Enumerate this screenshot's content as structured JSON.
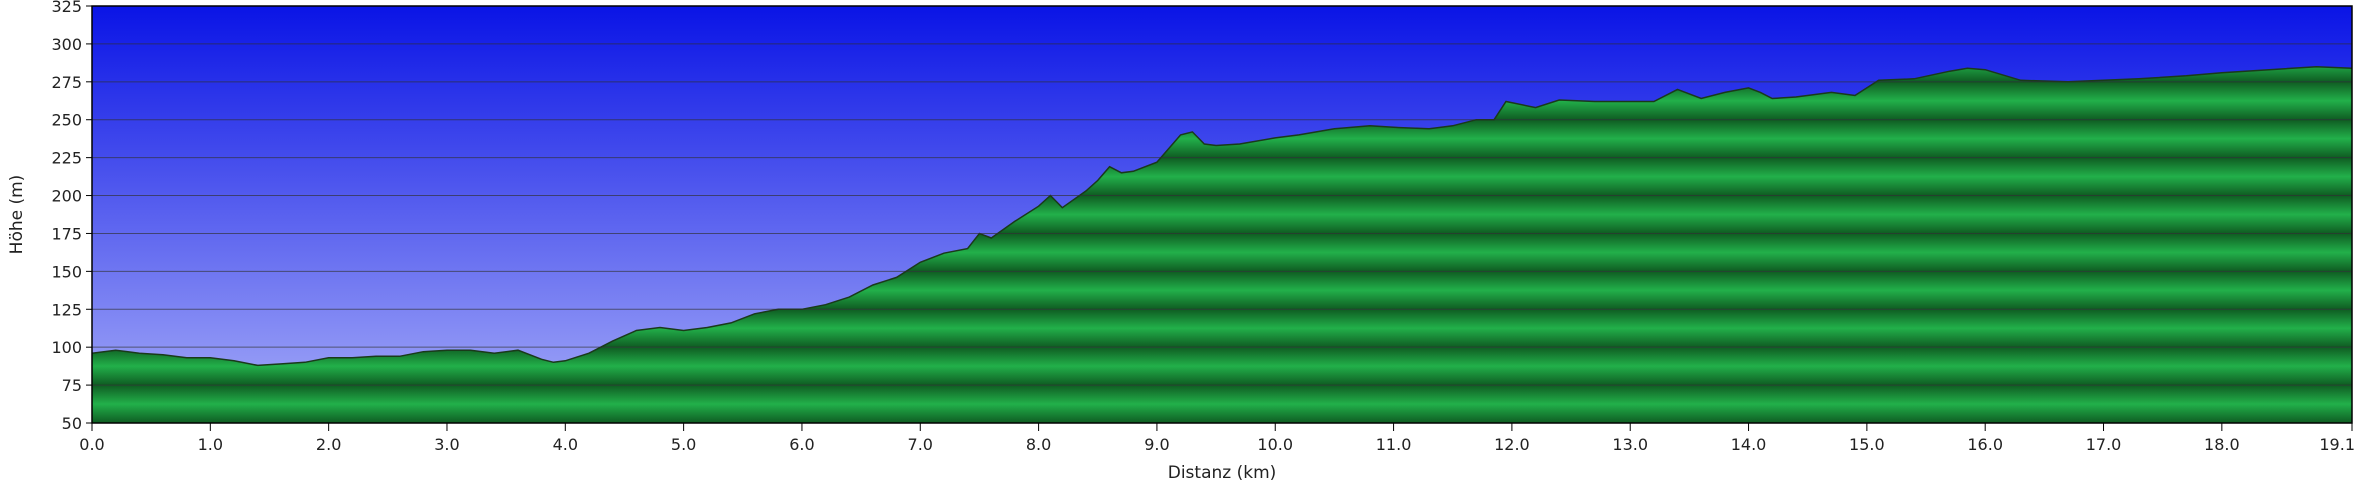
{
  "chart_data": {
    "type": "area",
    "xlabel": "Distanz   (km)",
    "ylabel": "Höhe (m)",
    "xlim": [
      0,
      19.1
    ],
    "ylim": [
      50,
      325
    ],
    "x_ticks": [
      "0.0",
      "1.0",
      "2.0",
      "3.0",
      "4.0",
      "5.0",
      "6.0",
      "7.0",
      "8.0",
      "9.0",
      "10.0",
      "11.0",
      "12.0",
      "13.0",
      "14.0",
      "15.0",
      "16.0",
      "17.0",
      "18.0",
      "19.1"
    ],
    "y_ticks": [
      "325",
      "300",
      "275",
      "250",
      "225",
      "200",
      "175",
      "150",
      "125",
      "100",
      "75",
      "50"
    ],
    "grid": true,
    "colors": {
      "sky_top": "#0a14e6",
      "sky_bottom": "#a8aef8",
      "fill_light": "#22b04a",
      "fill_dark": "#0f5c22",
      "outline": "#1a3a1a",
      "grid": "#303030"
    },
    "x": [
      0,
      0.2,
      0.4,
      0.6,
      0.8,
      1.0,
      1.2,
      1.4,
      1.6,
      1.8,
      2.0,
      2.2,
      2.4,
      2.6,
      2.8,
      3.0,
      3.2,
      3.4,
      3.6,
      3.8,
      3.9,
      4.0,
      4.2,
      4.4,
      4.6,
      4.8,
      5.0,
      5.2,
      5.4,
      5.6,
      5.8,
      6.0,
      6.2,
      6.4,
      6.6,
      6.8,
      7.0,
      7.2,
      7.4,
      7.5,
      7.6,
      7.8,
      8.0,
      8.1,
      8.2,
      8.4,
      8.5,
      8.6,
      8.7,
      8.8,
      9.0,
      9.2,
      9.3,
      9.4,
      9.5,
      9.7,
      10.0,
      10.2,
      10.5,
      10.8,
      11.0,
      11.3,
      11.5,
      11.7,
      11.85,
      11.95,
      12.2,
      12.4,
      12.7,
      13.0,
      13.2,
      13.4,
      13.6,
      13.8,
      14.0,
      14.1,
      14.2,
      14.4,
      14.7,
      14.9,
      15.1,
      15.4,
      15.7,
      15.85,
      16.0,
      16.3,
      16.7,
      17.0,
      17.3,
      17.7,
      18.0,
      18.4,
      18.8,
      19.1
    ],
    "y": [
      96,
      98,
      96,
      95,
      93,
      93,
      91,
      88,
      89,
      90,
      93,
      93,
      94,
      94,
      97,
      98,
      98,
      96,
      98,
      92,
      90,
      91,
      96,
      104,
      111,
      113,
      111,
      113,
      116,
      122,
      125,
      125,
      128,
      133,
      141,
      146,
      156,
      162,
      165,
      175,
      172,
      183,
      193,
      200,
      192,
      203,
      210,
      219,
      215,
      216,
      222,
      240,
      242,
      234,
      233,
      234,
      238,
      240,
      244,
      246,
      245,
      244,
      246,
      250,
      250,
      262,
      258,
      263,
      262,
      262,
      262,
      270,
      264,
      268,
      271,
      268,
      264,
      265,
      268,
      266,
      276,
      277,
      282,
      284,
      283,
      276,
      275,
      276,
      277,
      279,
      281,
      283,
      285,
      284
    ]
  }
}
